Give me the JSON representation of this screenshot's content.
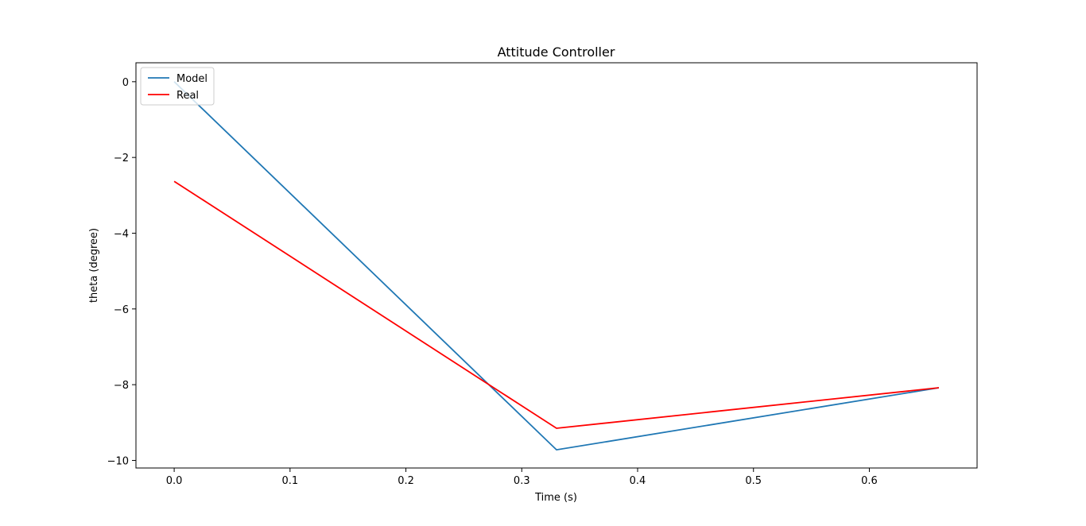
{
  "chart_data": {
    "type": "line",
    "title": "Attitude Controller",
    "xlabel": "Time (s)",
    "ylabel": "theta (degree)",
    "xlim": [
      -0.033,
      0.693
    ],
    "ylim": [
      -10.2,
      0.5
    ],
    "xticks": [
      0.0,
      0.1,
      0.2,
      0.3,
      0.4,
      0.5,
      0.6
    ],
    "xtick_labels": [
      "0.0",
      "0.1",
      "0.2",
      "0.3",
      "0.4",
      "0.5",
      "0.6"
    ],
    "yticks": [
      0,
      -2,
      -4,
      -6,
      -8,
      -10
    ],
    "ytick_labels": [
      "0",
      "−2",
      "−4",
      "−6",
      "−8",
      "−10"
    ],
    "grid": false,
    "legend_position": "upper left",
    "series": [
      {
        "name": "Model",
        "color": "#1f77b4",
        "x": [
          0.0,
          0.33,
          0.66
        ],
        "y": [
          0.0,
          -9.72,
          -8.08
        ]
      },
      {
        "name": "Real",
        "color": "#ff0000",
        "x": [
          0.0,
          0.33,
          0.66
        ],
        "y": [
          -2.63,
          -9.15,
          -8.08
        ]
      }
    ]
  }
}
